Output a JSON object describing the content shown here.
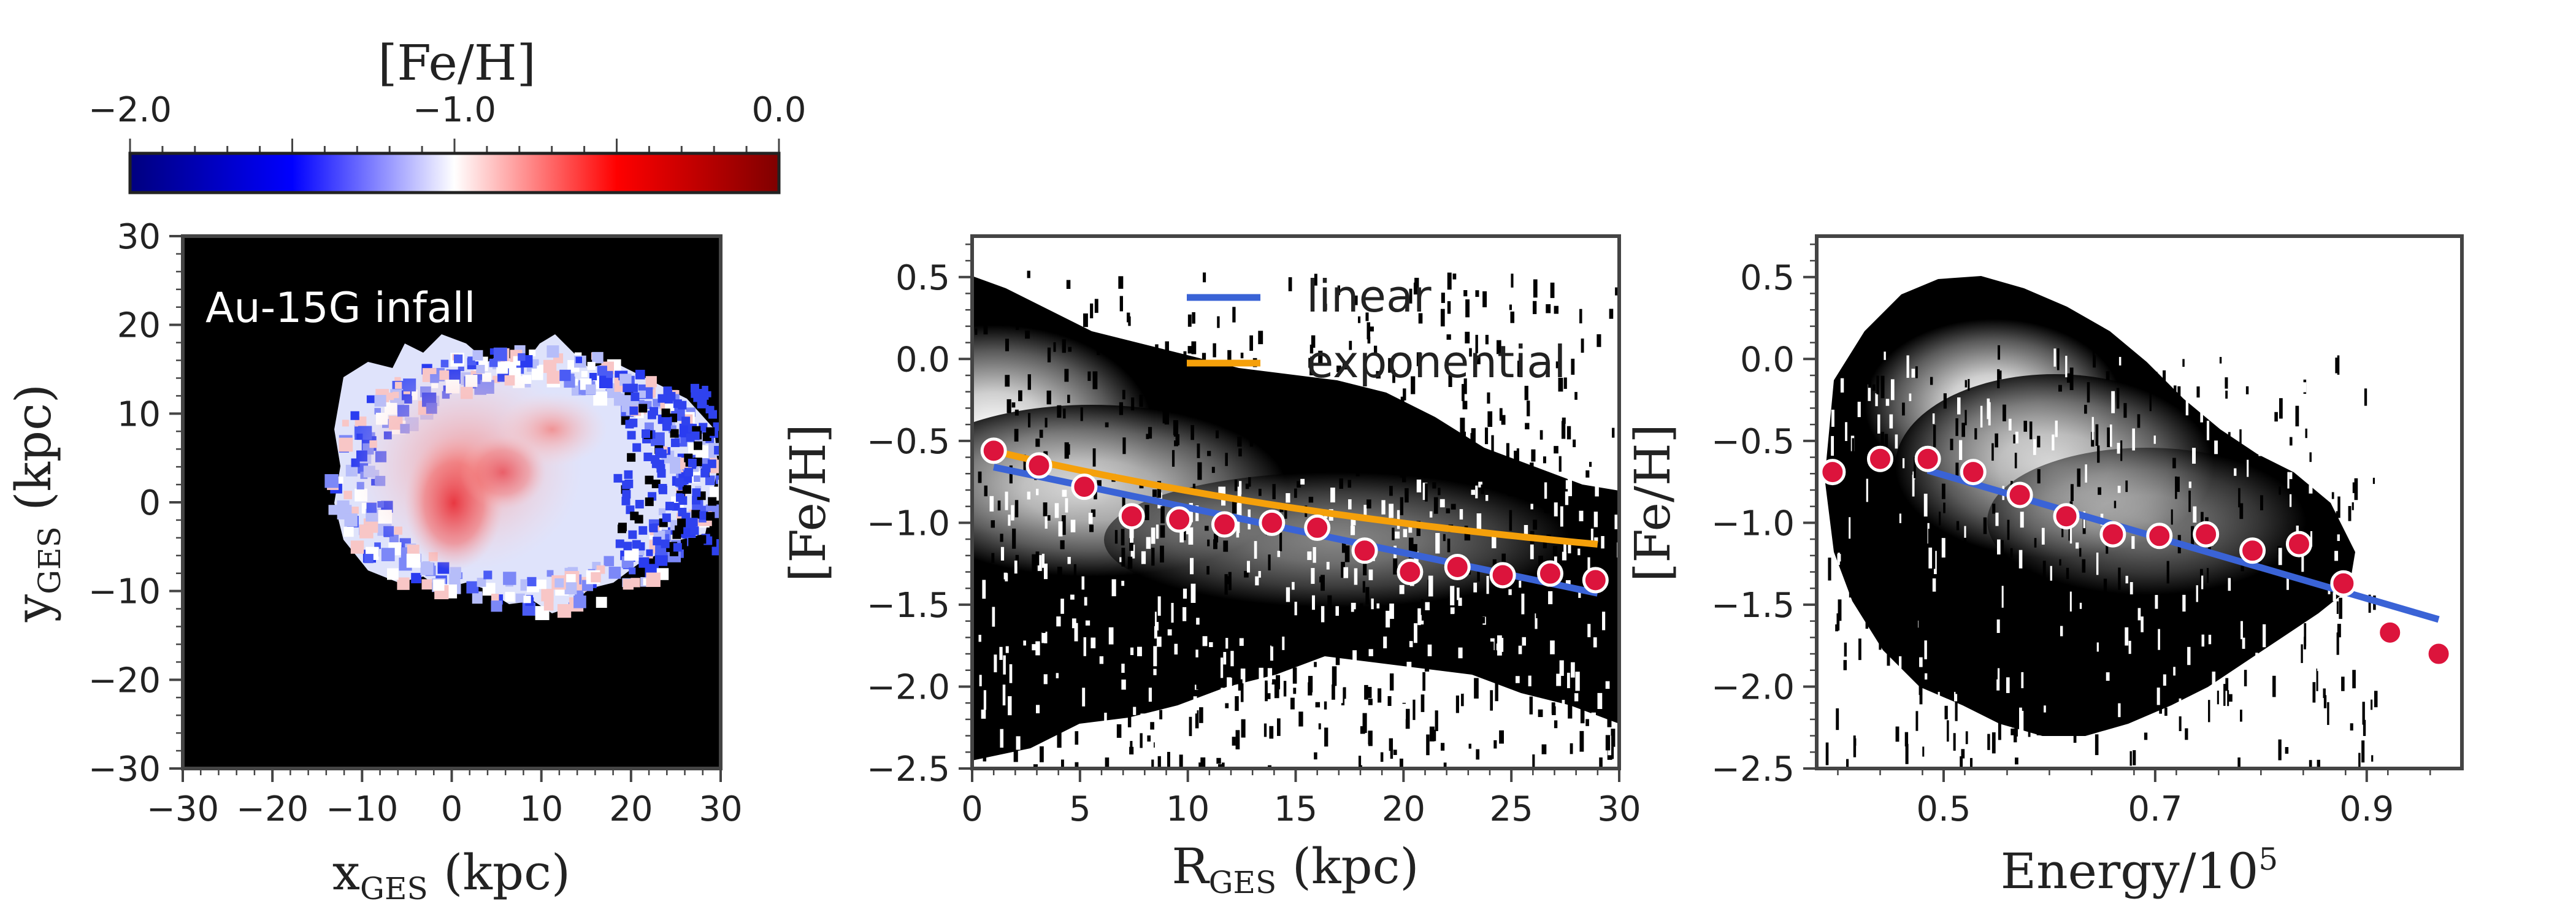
{
  "chart_data": [
    {
      "type": "heatmap",
      "panel": "spatial-map",
      "colorbar": {
        "title": "[Fe/H]",
        "min": -2.0,
        "max": 0.0,
        "tick_labels": [
          "−2.0",
          "−1.0",
          "0.0"
        ],
        "cmap": [
          "#00007f",
          "#0000ff",
          "#ffffff",
          "#ff0000",
          "#7f0000"
        ]
      },
      "annotation": "Au-15G infall",
      "xlim": [
        -30,
        30
      ],
      "ylim": [
        -30,
        30
      ],
      "xticks": [
        -30,
        -20,
        -10,
        0,
        10,
        20,
        30
      ],
      "yticks": [
        -30,
        -20,
        -10,
        0,
        10,
        20,
        30
      ],
      "xtick_labels": [
        "−30",
        "−20",
        "−10",
        "0",
        "10",
        "20",
        "30"
      ],
      "ytick_labels": [
        "30",
        "20",
        "10",
        "0",
        "−10",
        "−20",
        "−30"
      ],
      "xlabel": {
        "main": "x",
        "sub": "GES",
        "unit": " (kpc)"
      },
      "ylabel": {
        "main": "y",
        "sub": "GES",
        "unit": " (kpc)"
      }
    },
    {
      "type": "scatter",
      "panel": "radial-gradient",
      "xlim": [
        0,
        30
      ],
      "ylim": [
        -2.5,
        0.75
      ],
      "xticks": [
        0,
        5,
        10,
        15,
        20,
        25,
        30
      ],
      "yticks": [
        0.5,
        0.0,
        -0.5,
        -1.0,
        -1.5,
        -2.0,
        -2.5
      ],
      "xtick_labels": [
        "0",
        "5",
        "10",
        "15",
        "20",
        "25",
        "30"
      ],
      "ytick_labels": [
        "0.5",
        "0.0",
        "−0.5",
        "−1.0",
        "−1.5",
        "−2.0",
        "−2.5"
      ],
      "xlabel": {
        "main": "R",
        "sub": "GES",
        "unit": " (kpc)"
      },
      "ylabel": "[Fe/H]",
      "legend": [
        "linear",
        "exponential"
      ],
      "series": [
        {
          "name": "binned medians",
          "color": "#dc143c",
          "x": [
            1.0,
            3.1,
            5.2,
            7.4,
            9.6,
            11.7,
            13.9,
            16.0,
            18.2,
            20.3,
            22.5,
            24.6,
            26.8,
            28.9
          ],
          "y": [
            -0.56,
            -0.65,
            -0.78,
            -0.96,
            -0.98,
            -1.01,
            -1.0,
            -1.03,
            -1.17,
            -1.3,
            -1.27,
            -1.32,
            -1.31,
            -1.35
          ]
        },
        {
          "name": "linear",
          "color": "#3a63d6",
          "x": [
            1.0,
            29.0
          ],
          "y": [
            -0.66,
            -1.43
          ]
        },
        {
          "name": "exponential",
          "color": "#f5a00a",
          "amplitude": 0.97,
          "scale_kpc": 30.0,
          "offset": -1.5,
          "x_range": [
            1.0,
            29.0
          ]
        }
      ]
    },
    {
      "type": "scatter",
      "panel": "energy-gradient",
      "xlim": [
        0.38,
        0.99
      ],
      "ylim": [
        -2.5,
        0.75
      ],
      "xticks": [
        0.5,
        0.7,
        0.9
      ],
      "yticks": [
        0.5,
        0.0,
        -0.5,
        -1.0,
        -1.5,
        -2.0,
        -2.5
      ],
      "xtick_labels": [
        "0.5",
        "0.7",
        "0.9"
      ],
      "ytick_labels": [
        "0.5",
        "0.0",
        "−0.5",
        "−1.0",
        "−1.5",
        "−2.0",
        "−2.5"
      ],
      "xlabel": {
        "main": "Energy/10",
        "sup": "5"
      },
      "ylabel": "[Fe/H]",
      "series": [
        {
          "name": "binned medians",
          "color": "#dc143c",
          "x": [
            0.395,
            0.44,
            0.485,
            0.528,
            0.572,
            0.616,
            0.66,
            0.704,
            0.748,
            0.792,
            0.836,
            0.878,
            0.922,
            0.968
          ],
          "y": [
            -0.69,
            -0.61,
            -0.61,
            -0.69,
            -0.83,
            -0.96,
            -1.07,
            -1.08,
            -1.07,
            -1.17,
            -1.13,
            -1.37,
            -1.67,
            -1.8
          ]
        },
        {
          "name": "linear",
          "color": "#3a63d6",
          "x": [
            0.485,
            0.968
          ],
          "y": [
            -0.68,
            -1.59
          ]
        }
      ]
    }
  ]
}
